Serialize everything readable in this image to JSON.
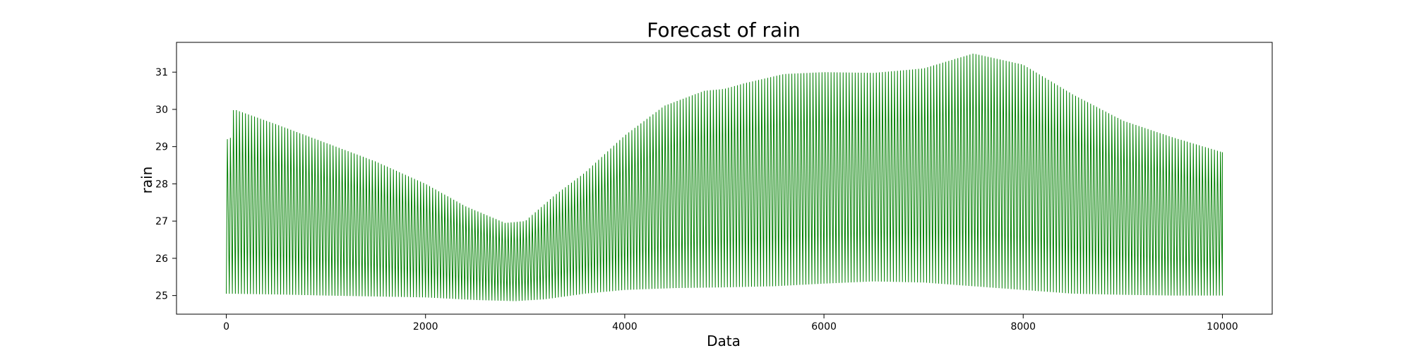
{
  "chart_data": {
    "type": "line",
    "title": "Forecast of rain",
    "xlabel": "Data",
    "ylabel": "rain",
    "xlim": [
      -500,
      10500
    ],
    "ylim": [
      24.5,
      31.8
    ],
    "x_ticks": [
      0,
      2000,
      4000,
      6000,
      8000,
      10000
    ],
    "y_ticks": [
      25,
      26,
      27,
      28,
      29,
      30,
      31
    ],
    "grid": false,
    "series": [
      {
        "color": "#008000",
        "oscillating": true,
        "x_range": [
          0,
          10000
        ],
        "cycles": 330,
        "upper_envelope": {
          "x": [
            0,
            40,
            60,
            100,
            500,
            1000,
            1500,
            2000,
            2400,
            2800,
            3000,
            3300,
            3600,
            4000,
            4400,
            4800,
            5000,
            5200,
            5600,
            6000,
            6500,
            7000,
            7500,
            8000,
            8500,
            9000,
            9500,
            10000
          ],
          "y": [
            29.2,
            29.2,
            29.98,
            29.98,
            29.6,
            29.1,
            28.6,
            28.0,
            27.4,
            26.95,
            27.0,
            27.7,
            28.3,
            29.3,
            30.1,
            30.5,
            30.55,
            30.7,
            30.95,
            31.0,
            30.98,
            31.1,
            31.5,
            31.2,
            30.4,
            29.7,
            29.25,
            28.85
          ]
        },
        "lower_envelope": {
          "x": [
            0,
            500,
            1000,
            2000,
            2500,
            2900,
            3200,
            3600,
            4000,
            4500,
            5000,
            5500,
            6000,
            6500,
            7000,
            7500,
            8000,
            8500,
            9000,
            9500,
            10000
          ],
          "y": [
            25.05,
            25.03,
            25.0,
            24.95,
            24.88,
            24.85,
            24.9,
            25.05,
            25.15,
            25.2,
            25.22,
            25.25,
            25.32,
            25.38,
            25.35,
            25.25,
            25.15,
            25.05,
            25.02,
            25.0,
            25.0
          ]
        }
      }
    ]
  }
}
